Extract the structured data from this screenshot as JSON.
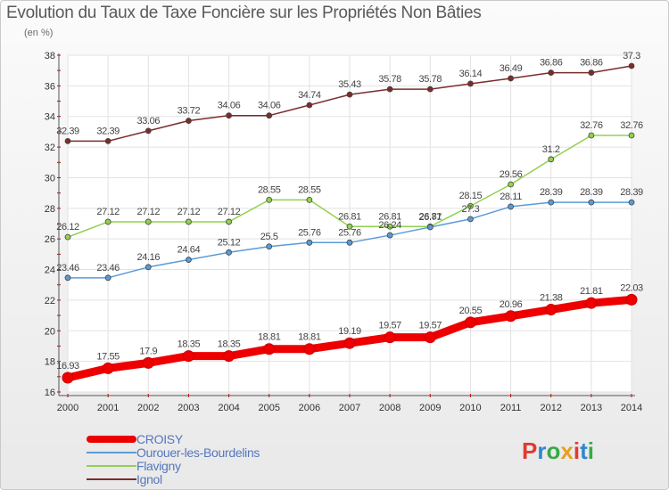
{
  "header": {
    "title": "Evolution du Taux de Taxe Foncière sur les Propriétés Non Bâties",
    "subtitle": "(en %)"
  },
  "brand": {
    "letters": [
      "P",
      "r",
      "o",
      "x",
      "i",
      "t",
      "i"
    ],
    "colors": [
      "#e03a2e",
      "#2e86d1",
      "#39a845",
      "#e8a020",
      "#e03a2e",
      "#2e86d1",
      "#39a845"
    ]
  },
  "chart_data": {
    "type": "line",
    "x": [
      "2000",
      "2001",
      "2002",
      "2003",
      "2004",
      "2005",
      "2006",
      "2007",
      "2008",
      "2009",
      "2010",
      "2011",
      "2012",
      "2013",
      "2014"
    ],
    "ylim": [
      16,
      38
    ],
    "yticks": [
      "16",
      "18",
      "20",
      "22",
      "24",
      "26",
      "28",
      "30",
      "32",
      "34",
      "36",
      "38"
    ],
    "grid": true,
    "legend": "bottom-left",
    "series": [
      {
        "name": "CROISY",
        "color": "#ee0000",
        "values": [
          16.93,
          17.55,
          17.9,
          18.35,
          18.35,
          18.81,
          18.81,
          19.19,
          19.57,
          19.57,
          20.55,
          20.96,
          21.38,
          21.81,
          22.03
        ],
        "labels": [
          "16.93",
          "17.55",
          "17.9",
          "18.35",
          "18.35",
          "18.81",
          "18.81",
          "19.19",
          "19.57",
          "19.57",
          "20.55",
          "20.96",
          "21.38",
          "21.81",
          "22.03"
        ]
      },
      {
        "name": "Ourouer-les-Bourdelins",
        "color": "#5b9bd5",
        "values": [
          23.46,
          23.46,
          24.16,
          24.64,
          25.12,
          25.5,
          25.76,
          25.76,
          26.24,
          26.77,
          27.3,
          28.11,
          28.39,
          28.39,
          28.39
        ],
        "labels": [
          "23.46",
          "23.46",
          "24.16",
          "24.64",
          "25.12",
          "25.5",
          "25.76",
          "25.76",
          "26.24",
          "26.77",
          "27.3",
          "28.11",
          "28.39",
          "28.39",
          "28.39"
        ]
      },
      {
        "name": "Flavigny",
        "color": "#92d050",
        "values": [
          26.12,
          27.12,
          27.12,
          27.12,
          27.12,
          28.55,
          28.55,
          26.81,
          26.81,
          26.81,
          28.15,
          29.56,
          31.2,
          32.76,
          32.76
        ],
        "labels": [
          "26.12",
          "27.12",
          "27.12",
          "27.12",
          "27.12",
          "28.55",
          "28.55",
          "26.81",
          "26.81",
          "26.81",
          "28.15",
          "29.56",
          "31.2",
          "32.76",
          "32.76"
        ]
      },
      {
        "name": "Ignol",
        "color": "#7b2c2c",
        "values": [
          32.39,
          32.39,
          33.06,
          33.72,
          34.06,
          34.06,
          34.74,
          35.43,
          35.78,
          35.78,
          36.14,
          36.49,
          36.86,
          36.86,
          37.3
        ],
        "labels": [
          "32.39",
          "32.39",
          "33.06",
          "33.72",
          "34.06",
          "34.06",
          "34.74",
          "35.43",
          "35.78",
          "35.78",
          "36.14",
          "36.49",
          "36.86",
          "36.86",
          "37.3"
        ]
      }
    ]
  }
}
